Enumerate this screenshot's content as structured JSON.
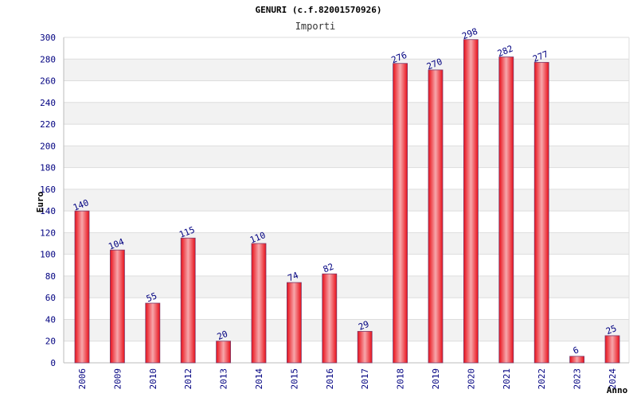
{
  "chart_data": {
    "type": "bar",
    "title": "GENURI (c.f.82001570926)",
    "subtitle": "Importi",
    "ylabel": "Euro",
    "xlabel": "Anno",
    "ylim": [
      0,
      300
    ],
    "ytick_step": 20,
    "grid": true,
    "categories": [
      "2006",
      "2009",
      "2010",
      "2012",
      "2013",
      "2014",
      "2015",
      "2016",
      "2017",
      "2018",
      "2019",
      "2020",
      "2021",
      "2022",
      "2023",
      "2024"
    ],
    "values": [
      140,
      104,
      55,
      115,
      20,
      110,
      74,
      82,
      29,
      276,
      270,
      298,
      282,
      277,
      6,
      25
    ],
    "bar_color": "#e8101a",
    "bar_highlight": "#f7a7ab",
    "label_color": "#000080"
  }
}
